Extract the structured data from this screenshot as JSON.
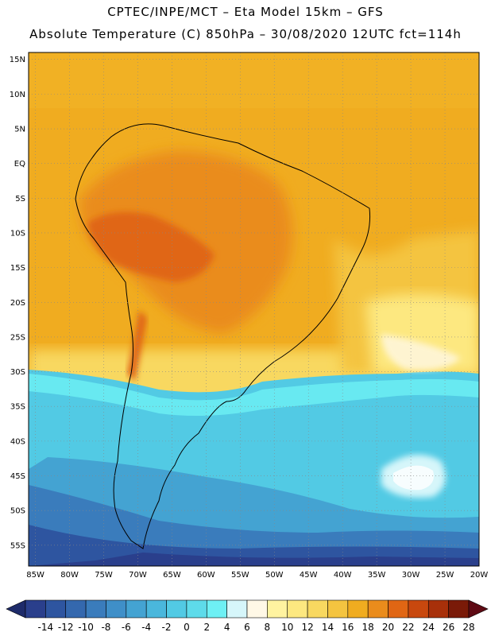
{
  "header": {
    "line1": "CPTEC/INPE/MCT –  Eta Model 15km – GFS",
    "line2": "Absolute Temperature (C) 850hPa – 30/08/2020 12UTC fct=114h"
  },
  "map": {
    "lat_labels": [
      "15N",
      "10N",
      "5N",
      "EQ",
      "5S",
      "10S",
      "15S",
      "20S",
      "25S",
      "30S",
      "35S",
      "40S",
      "45S",
      "50S",
      "55S"
    ],
    "lon_labels": [
      "85W",
      "80W",
      "75W",
      "70W",
      "65W",
      "60W",
      "55W",
      "50W",
      "45W",
      "40W",
      "35W",
      "30W",
      "25W",
      "20W"
    ],
    "lat_range": [
      -58,
      16
    ],
    "lon_range": [
      -86,
      -20
    ]
  },
  "colorbar": {
    "labels": [
      "-14",
      "-12",
      "-10",
      "-8",
      "-6",
      "-4",
      "-2",
      "0",
      "2",
      "4",
      "6",
      "8",
      "10",
      "12",
      "14",
      "16",
      "18",
      "20",
      "22",
      "24",
      "26",
      "28"
    ],
    "colors": [
      "#2a3f8c",
      "#2e55a0",
      "#3468ae",
      "#3a7cbc",
      "#3f8fc8",
      "#44a3d2",
      "#4ab7dc",
      "#52cae4",
      "#5edbea",
      "#6ef0f4",
      "#d6f6fa",
      "#fff8e6",
      "#fff3a0",
      "#fde880",
      "#f8d860",
      "#f4c440",
      "#f0ac20",
      "#ea8c1c",
      "#e06614",
      "#c8480e",
      "#a8300a",
      "#7a1a08"
    ],
    "end_low": "#1e2b6a",
    "end_high": "#5e0a14"
  }
}
